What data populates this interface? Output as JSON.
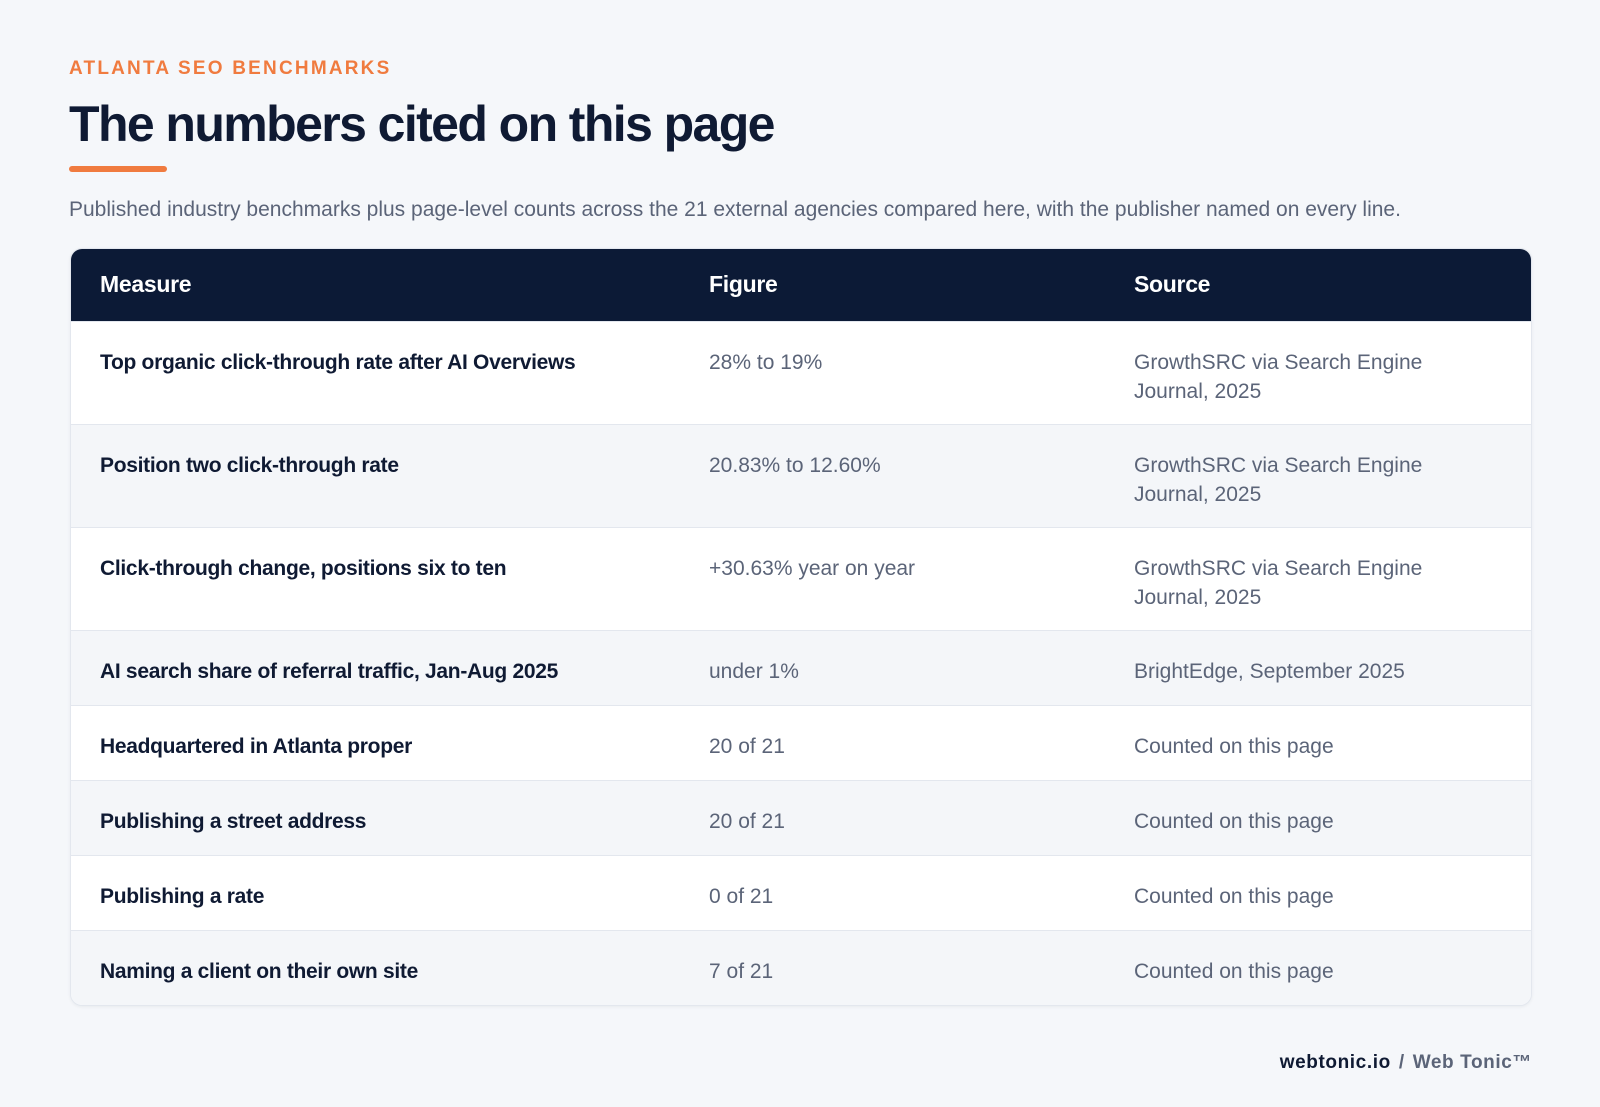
{
  "header": {
    "eyebrow": "ATLANTA SEO BENCHMARKS",
    "title": "The numbers cited on this page",
    "subtitle": "Published industry benchmarks plus page-level counts across the 21 external agencies compared here, with the publisher named on every line."
  },
  "table": {
    "columns": [
      "Measure",
      "Figure",
      "Source"
    ],
    "rows": [
      {
        "measure": "Top organic click-through rate after AI Overviews",
        "figure": "28% to 19%",
        "source": "GrowthSRC via Search Engine Journal, 2025"
      },
      {
        "measure": "Position two click-through rate",
        "figure": "20.83% to 12.60%",
        "source": "GrowthSRC via Search Engine Journal, 2025"
      },
      {
        "measure": "Click-through change, positions six to ten",
        "figure": "+30.63% year on year",
        "source": "GrowthSRC via Search Engine Journal, 2025"
      },
      {
        "measure": "AI search share of referral traffic, Jan-Aug 2025",
        "figure": "under 1%",
        "source": "BrightEdge, September 2025"
      },
      {
        "measure": "Headquartered in Atlanta proper",
        "figure": "20 of 21",
        "source": "Counted on this page"
      },
      {
        "measure": "Publishing a street address",
        "figure": "20 of 21",
        "source": "Counted on this page"
      },
      {
        "measure": "Publishing a rate",
        "figure": "0 of 21",
        "source": "Counted on this page"
      },
      {
        "measure": "Naming a client on their own site",
        "figure": "7 of 21",
        "source": "Counted on this page"
      }
    ]
  },
  "footer": {
    "domain": "webtonic.io",
    "separator": "/",
    "brand": "Web Tonic™"
  },
  "colors": {
    "accent": "#f07b3f",
    "header_bg": "#0c1a36",
    "text_dark": "#0f1a33",
    "text_muted": "#5b6478",
    "page_bg": "#f5f7fa"
  }
}
